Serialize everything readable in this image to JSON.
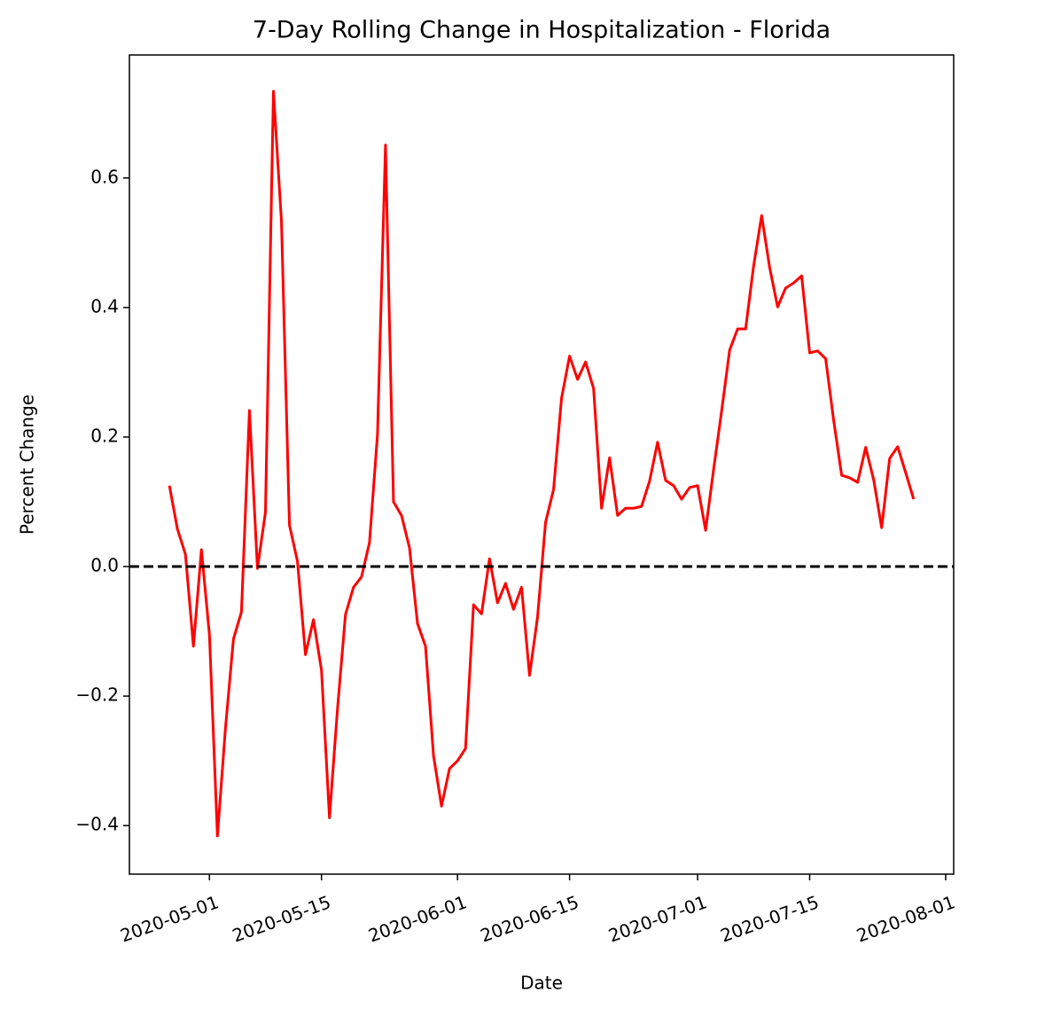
{
  "chart_data": {
    "type": "line",
    "title": "7-Day Rolling Change in Hospitalization - Florida",
    "x_label": "Date",
    "y_label": "Percent Change",
    "x": [
      "2020-04-26",
      "2020-04-27",
      "2020-04-28",
      "2020-04-29",
      "2020-04-30",
      "2020-05-01",
      "2020-05-02",
      "2020-05-03",
      "2020-05-04",
      "2020-05-05",
      "2020-05-06",
      "2020-05-07",
      "2020-05-08",
      "2020-05-09",
      "2020-05-10",
      "2020-05-11",
      "2020-05-12",
      "2020-05-13",
      "2020-05-14",
      "2020-05-15",
      "2020-05-16",
      "2020-05-17",
      "2020-05-18",
      "2020-05-19",
      "2020-05-20",
      "2020-05-21",
      "2020-05-22",
      "2020-05-23",
      "2020-05-24",
      "2020-05-25",
      "2020-05-26",
      "2020-05-27",
      "2020-05-28",
      "2020-05-29",
      "2020-05-30",
      "2020-05-31",
      "2020-06-01",
      "2020-06-02",
      "2020-06-03",
      "2020-06-04",
      "2020-06-05",
      "2020-06-06",
      "2020-06-07",
      "2020-06-08",
      "2020-06-09",
      "2020-06-10",
      "2020-06-11",
      "2020-06-12",
      "2020-06-13",
      "2020-06-14",
      "2020-06-15",
      "2020-06-16",
      "2020-06-17",
      "2020-06-18",
      "2020-06-19",
      "2020-06-20",
      "2020-06-21",
      "2020-06-22",
      "2020-06-23",
      "2020-06-24",
      "2020-06-25",
      "2020-06-26",
      "2020-06-27",
      "2020-06-28",
      "2020-06-29",
      "2020-06-30",
      "2020-07-01",
      "2020-07-02",
      "2020-07-03",
      "2020-07-04",
      "2020-07-05",
      "2020-07-06",
      "2020-07-07",
      "2020-07-08",
      "2020-07-09",
      "2020-07-10",
      "2020-07-11",
      "2020-07-12",
      "2020-07-13",
      "2020-07-14",
      "2020-07-15",
      "2020-07-16",
      "2020-07-17",
      "2020-07-18",
      "2020-07-19",
      "2020-07-20",
      "2020-07-21",
      "2020-07-22",
      "2020-07-23",
      "2020-07-24",
      "2020-07-25",
      "2020-07-26",
      "2020-07-27",
      "2020-07-28"
    ],
    "series": [
      {
        "name": "7-Day Rolling Change",
        "color": "#ff0000",
        "values": [
          0.125,
          0.058,
          0.019,
          -0.123,
          0.026,
          -0.105,
          -0.416,
          -0.25,
          -0.112,
          -0.07,
          0.241,
          -0.003,
          0.084,
          0.734,
          0.533,
          0.064,
          0.008,
          -0.136,
          -0.082,
          -0.16,
          -0.388,
          -0.22,
          -0.074,
          -0.032,
          -0.016,
          0.037,
          0.204,
          0.651,
          0.1,
          0.079,
          0.029,
          -0.088,
          -0.123,
          -0.292,
          -0.37,
          -0.312,
          -0.3,
          -0.281,
          -0.059,
          -0.073,
          0.012,
          -0.056,
          -0.026,
          -0.066,
          -0.032,
          -0.168,
          -0.078,
          0.068,
          0.119,
          0.26,
          0.325,
          0.289,
          0.316,
          0.275,
          0.09,
          0.168,
          0.079,
          0.09,
          0.09,
          0.093,
          0.132,
          0.192,
          0.133,
          0.125,
          0.104,
          0.122,
          0.125,
          0.056,
          0.15,
          0.24,
          0.334,
          0.367,
          0.367,
          0.464,
          0.542,
          0.462,
          0.401,
          0.43,
          0.438,
          0.449,
          0.33,
          0.333,
          0.321,
          0.226,
          0.141,
          0.137,
          0.13,
          0.184,
          0.134,
          0.06,
          0.167,
          0.185,
          0.145,
          0.104
        ]
      }
    ],
    "xlim": [
      "2020-04-21",
      "2020-08-02"
    ],
    "xticks": [
      "2020-05-01",
      "2020-05-15",
      "2020-06-01",
      "2020-06-15",
      "2020-07-01",
      "2020-07-15",
      "2020-08-01"
    ],
    "ylim": [
      -0.475,
      0.79
    ],
    "yticks": [
      {
        "value": -0.4,
        "label": "−0.4"
      },
      {
        "value": -0.2,
        "label": "−0.2"
      },
      {
        "value": 0,
        "label": "0.0"
      },
      0.2,
      0.4,
      0.6
    ],
    "reference_line": {
      "y": 0,
      "color": "#000000",
      "style": "dashed"
    },
    "grid": false
  }
}
